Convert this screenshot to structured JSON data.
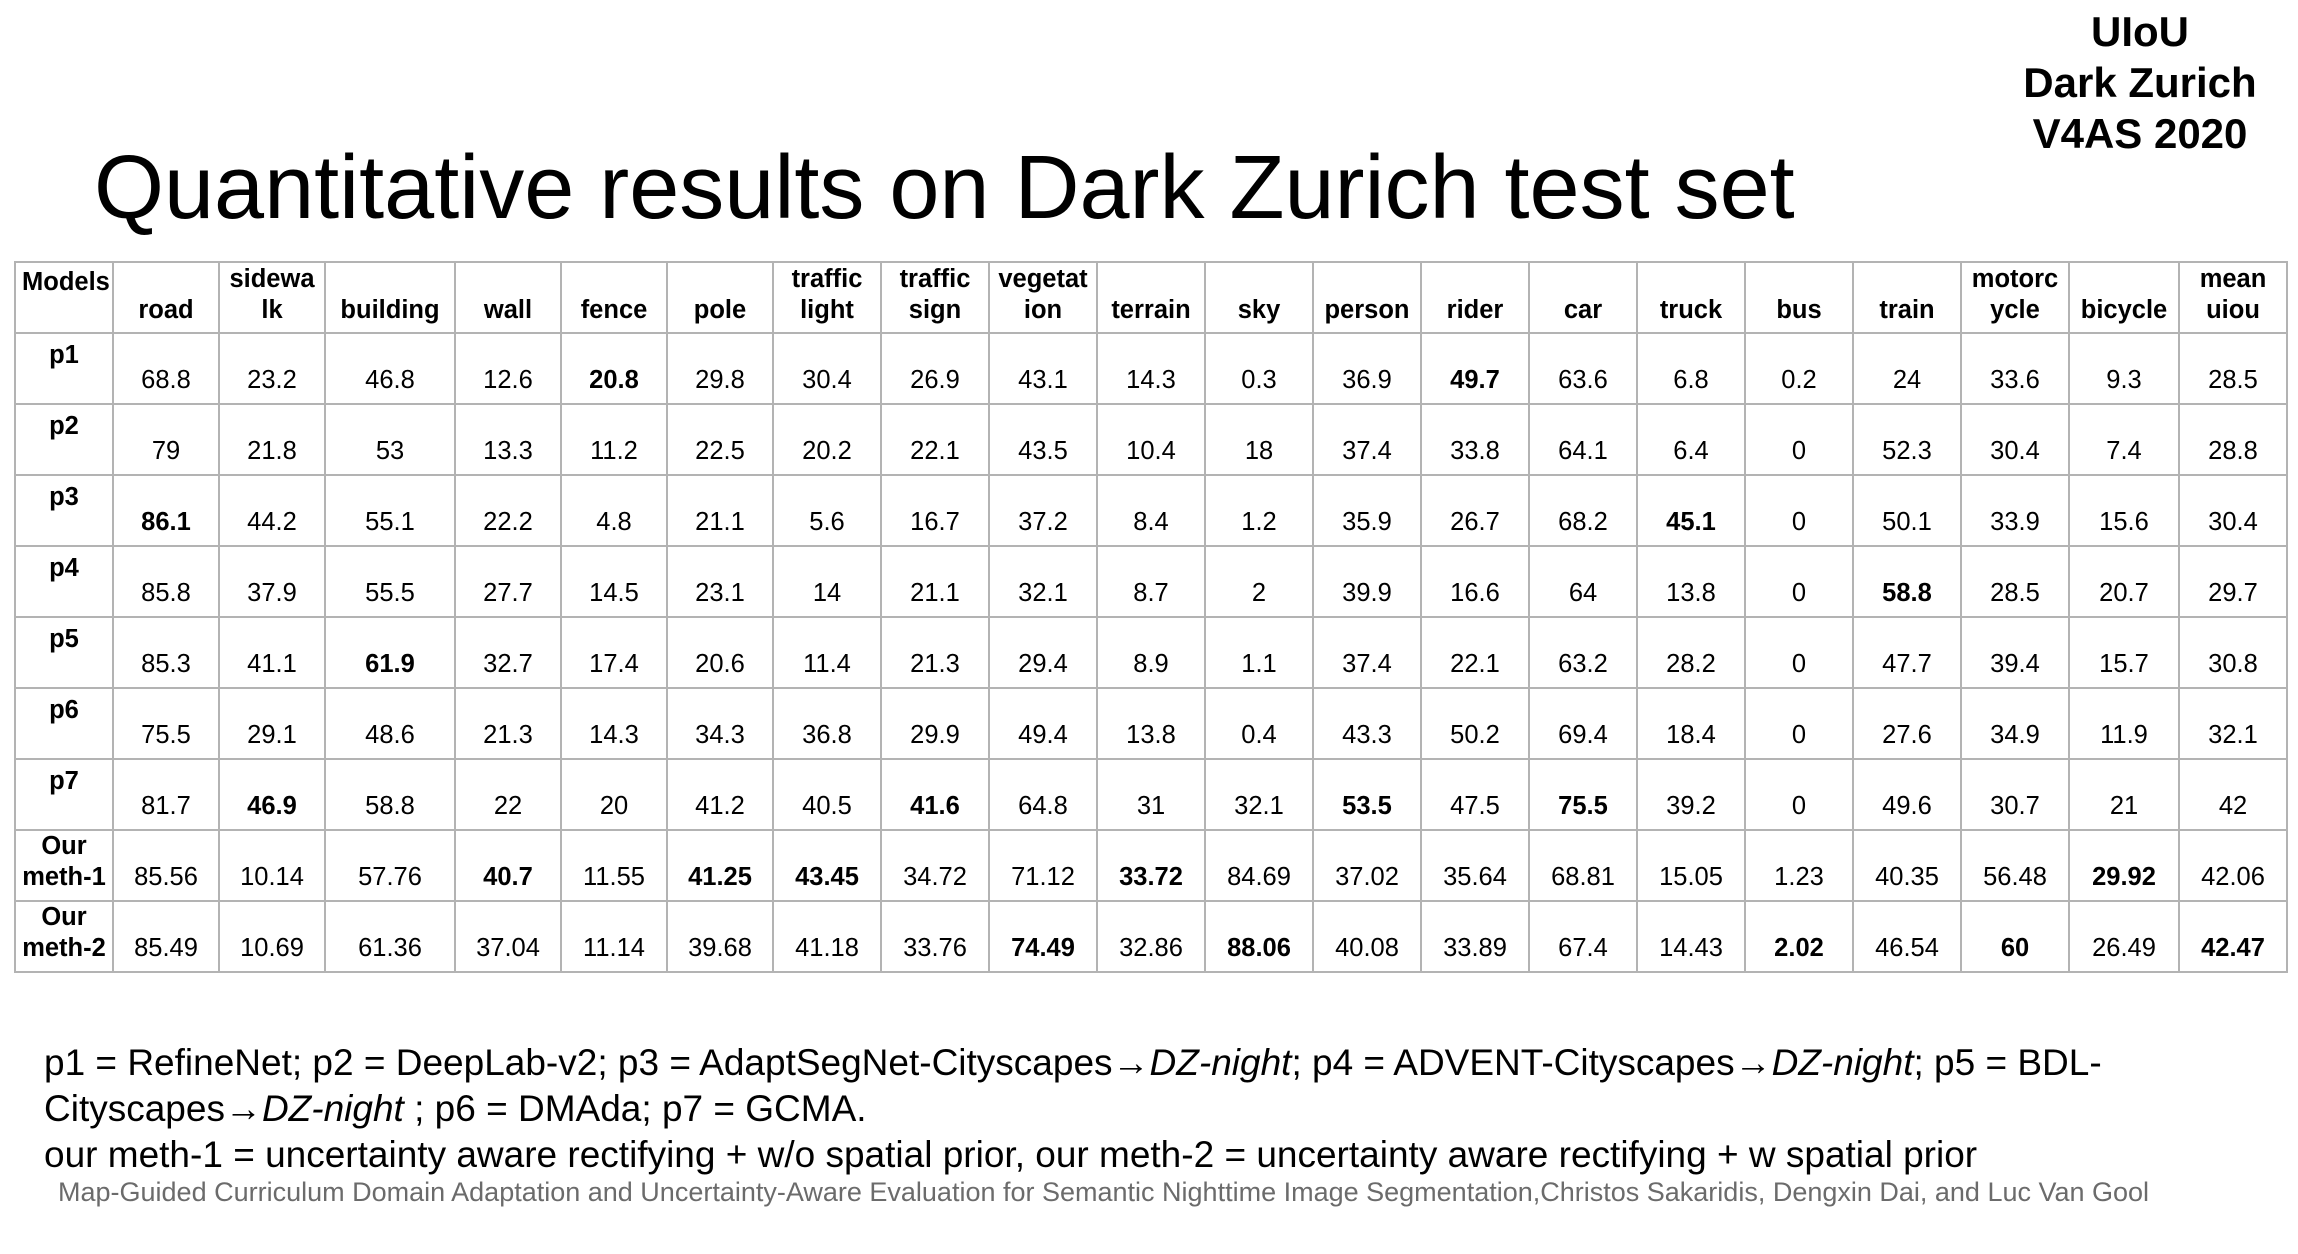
{
  "badge": {
    "line1": "UIoU",
    "line2": "Dark Zurich",
    "line3": "V4AS 2020"
  },
  "title": "Quantitative results on Dark Zurich test set",
  "table": {
    "corner": "Models",
    "columns": [
      "road",
      "sidewa lk",
      "building",
      "wall",
      "fence",
      "pole",
      "traffic light",
      "traffic sign",
      "vegetat ion",
      "terrain",
      "sky",
      "person",
      "rider",
      "car",
      "truck",
      "bus",
      "train",
      "motorc ycle",
      "bicycle",
      "mean uiou"
    ],
    "rows": [
      {
        "model": "p1",
        "values": [
          "68.8",
          "23.2",
          "46.8",
          "12.6",
          "20.8",
          "29.8",
          "30.4",
          "26.9",
          "43.1",
          "14.3",
          "0.3",
          "36.9",
          "49.7",
          "63.6",
          "6.8",
          "0.2",
          "24",
          "33.6",
          "9.3",
          "28.5"
        ],
        "bold": [
          4,
          12
        ]
      },
      {
        "model": "p2",
        "values": [
          "79",
          "21.8",
          "53",
          "13.3",
          "11.2",
          "22.5",
          "20.2",
          "22.1",
          "43.5",
          "10.4",
          "18",
          "37.4",
          "33.8",
          "64.1",
          "6.4",
          "0",
          "52.3",
          "30.4",
          "7.4",
          "28.8"
        ],
        "bold": []
      },
      {
        "model": "p3",
        "values": [
          "86.1",
          "44.2",
          "55.1",
          "22.2",
          "4.8",
          "21.1",
          "5.6",
          "16.7",
          "37.2",
          "8.4",
          "1.2",
          "35.9",
          "26.7",
          "68.2",
          "45.1",
          "0",
          "50.1",
          "33.9",
          "15.6",
          "30.4"
        ],
        "bold": [
          0,
          14
        ]
      },
      {
        "model": "p4",
        "values": [
          "85.8",
          "37.9",
          "55.5",
          "27.7",
          "14.5",
          "23.1",
          "14",
          "21.1",
          "32.1",
          "8.7",
          "2",
          "39.9",
          "16.6",
          "64",
          "13.8",
          "0",
          "58.8",
          "28.5",
          "20.7",
          "29.7"
        ],
        "bold": [
          16
        ]
      },
      {
        "model": "p5",
        "values": [
          "85.3",
          "41.1",
          "61.9",
          "32.7",
          "17.4",
          "20.6",
          "11.4",
          "21.3",
          "29.4",
          "8.9",
          "1.1",
          "37.4",
          "22.1",
          "63.2",
          "28.2",
          "0",
          "47.7",
          "39.4",
          "15.7",
          "30.8"
        ],
        "bold": [
          2
        ]
      },
      {
        "model": "p6",
        "values": [
          "75.5",
          "29.1",
          "48.6",
          "21.3",
          "14.3",
          "34.3",
          "36.8",
          "29.9",
          "49.4",
          "13.8",
          "0.4",
          "43.3",
          "50.2",
          "69.4",
          "18.4",
          "0",
          "27.6",
          "34.9",
          "11.9",
          "32.1"
        ],
        "bold": []
      },
      {
        "model": "p7",
        "values": [
          "81.7",
          "46.9",
          "58.8",
          "22",
          "20",
          "41.2",
          "40.5",
          "41.6",
          "64.8",
          "31",
          "32.1",
          "53.5",
          "47.5",
          "75.5",
          "39.2",
          "0",
          "49.6",
          "30.7",
          "21",
          "42"
        ],
        "bold": [
          1,
          7,
          11,
          13
        ]
      },
      {
        "model": "Our meth-1",
        "values": [
          "85.56",
          "10.14",
          "57.76",
          "40.7",
          "11.55",
          "41.25",
          "43.45",
          "34.72",
          "71.12",
          "33.72",
          "84.69",
          "37.02",
          "35.64",
          "68.81",
          "15.05",
          "1.23",
          "40.35",
          "56.48",
          "29.92",
          "42.06"
        ],
        "bold": [
          3,
          5,
          6,
          9,
          18
        ]
      },
      {
        "model": "Our meth-2",
        "values": [
          "85.49",
          "10.69",
          "61.36",
          "37.04",
          "11.14",
          "39.68",
          "41.18",
          "33.76",
          "74.49",
          "32.86",
          "88.06",
          "40.08",
          "33.89",
          "67.4",
          "14.43",
          "2.02",
          "46.54",
          "60",
          "26.49",
          "42.47"
        ],
        "bold": [
          8,
          10,
          15,
          17,
          19
        ]
      }
    ]
  },
  "notes": {
    "line1": [
      {
        "text": "p1 = RefineNet; p2 = DeepLab-v2; p3 = AdaptSegNet-Cityscapes→",
        "italic": false
      },
      {
        "text": "DZ-night",
        "italic": true
      },
      {
        "text": "; p4 = ADVENT-Cityscapes→",
        "italic": false
      },
      {
        "text": "DZ-night",
        "italic": true
      },
      {
        "text": "; p5 = BDL-Cityscapes→",
        "italic": false
      },
      {
        "text": "DZ-night",
        "italic": true
      },
      {
        "text": " ; p6 = DMAda; p7 = GCMA.",
        "italic": false
      }
    ],
    "line2": "our meth-1 = uncertainty aware rectifying + w/o spatial prior, our meth-2 = uncertainty aware rectifying + w spatial prior"
  },
  "citation": "Map-Guided Curriculum Domain Adaptation and Uncertainty-Aware Evaluation for Semantic Nighttime Image Segmentation,Christos Sakaridis, Dengxin Dai, and Luc Van Gool"
}
